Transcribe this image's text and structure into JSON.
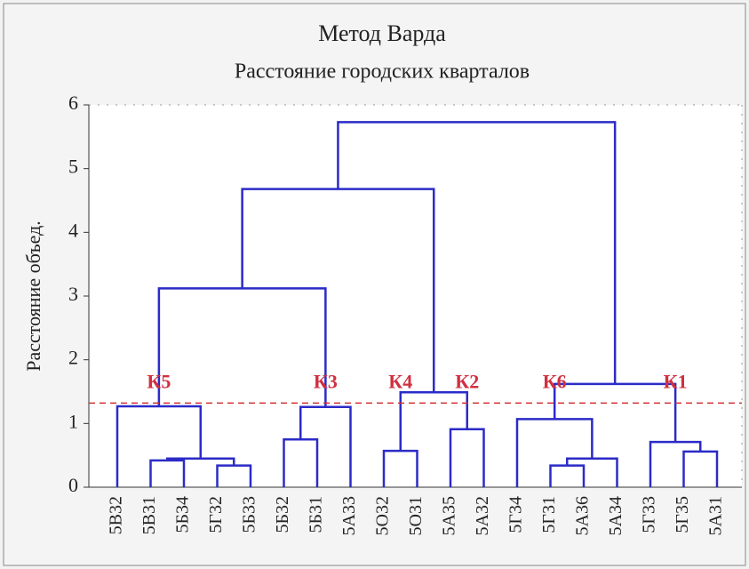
{
  "chart_data": {
    "type": "dendrogram",
    "title": "Метод Варда",
    "subtitle": "Расстояние городских кварталов",
    "y_label": "Расстояние объед.",
    "leaves": [
      "5В32",
      "5В31",
      "5Б34",
      "5Г32",
      "5Б33",
      "5Б32",
      "5Б31",
      "5А33",
      "5О32",
      "5О31",
      "5А35",
      "5А32",
      "5Г34",
      "5Г31",
      "5А36",
      "5А34",
      "5Г33",
      "5Г35",
      "5А31"
    ],
    "merges": [
      [
        1,
        2,
        0.42
      ],
      [
        3,
        4,
        0.34
      ],
      [
        19,
        20,
        0.45
      ],
      [
        0,
        21,
        1.27
      ],
      [
        5,
        6,
        0.75
      ],
      [
        23,
        7,
        1.26
      ],
      [
        22,
        24,
        3.12
      ],
      [
        8,
        9,
        0.57
      ],
      [
        10,
        11,
        0.91
      ],
      [
        26,
        27,
        1.49
      ],
      [
        25,
        28,
        4.68
      ],
      [
        13,
        14,
        0.34
      ],
      [
        30,
        15,
        0.45
      ],
      [
        12,
        31,
        1.07
      ],
      [
        17,
        18,
        0.56
      ],
      [
        16,
        33,
        0.71
      ],
      [
        32,
        34,
        1.62
      ],
      [
        29,
        35,
        5.73
      ]
    ],
    "cluster_labels": [
      {
        "text": "К5",
        "node": 22
      },
      {
        "text": "К3",
        "node": 24
      },
      {
        "text": "К4",
        "node": 26
      },
      {
        "text": "К2",
        "node": 27
      },
      {
        "text": "К6",
        "node": 32
      },
      {
        "text": "К1",
        "node": 34
      }
    ],
    "threshold": 1.32,
    "threshold_color": "#d03030",
    "label_color": "#d03040",
    "color": "#2b2bc8",
    "ylim": [
      0,
      6
    ],
    "yticks": [
      0,
      1,
      2,
      3,
      4,
      5,
      6
    ]
  }
}
